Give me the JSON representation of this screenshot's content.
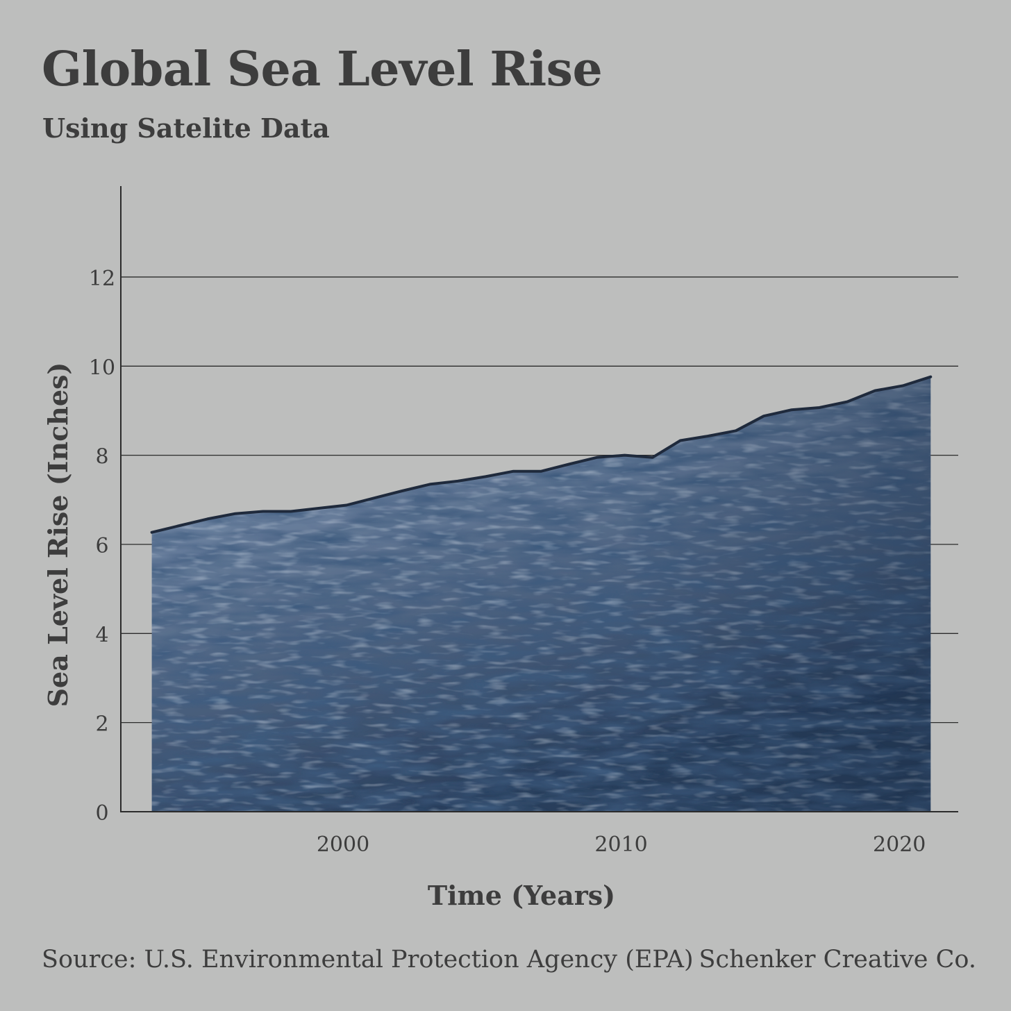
{
  "header": {
    "title": "Global Sea Level Rise",
    "subtitle": "Using Satelite Data"
  },
  "footer": {
    "source": "Source: U.S. Environmental Protection Agency (EPA)",
    "credit": "Schenker Creative Co."
  },
  "colors": {
    "background": "#bdbebd",
    "text": "#3d3d3d",
    "line": "#1f2a3c",
    "fill_light": "#9fb1c6",
    "fill_dark": "#263a57"
  },
  "chart_data": {
    "type": "area",
    "title": "Global Sea Level Rise",
    "subtitle": "Using Satelite Data",
    "xlabel": "Time (Years)",
    "ylabel": "Sea Level Rise (Inches)",
    "xlim": [
      1992,
      2022
    ],
    "ylim": [
      0,
      14
    ],
    "x_ticks": [
      2000,
      2010,
      2020
    ],
    "y_ticks": [
      0,
      2,
      4,
      6,
      8,
      10,
      12
    ],
    "grid": true,
    "fill": "ocean-water-texture",
    "x": [
      1993,
      1994,
      1995,
      1996,
      1997,
      1998,
      1999,
      2000,
      2001,
      2002,
      2003,
      2004,
      2005,
      2006,
      2007,
      2008,
      2009,
      2010,
      2011,
      2012,
      2013,
      2014,
      2015,
      2016,
      2017,
      2018,
      2019,
      2020,
      2021
    ],
    "series": [
      {
        "values": [
          6.27,
          6.42,
          6.57,
          6.69,
          6.74,
          6.74,
          6.81,
          6.88,
          7.04,
          7.2,
          7.35,
          7.42,
          7.52,
          7.64,
          7.64,
          7.8,
          7.95,
          8.0,
          7.95,
          8.33,
          8.43,
          8.55,
          8.88,
          9.02,
          9.07,
          9.2,
          9.45,
          9.56,
          9.76
        ]
      }
    ]
  }
}
